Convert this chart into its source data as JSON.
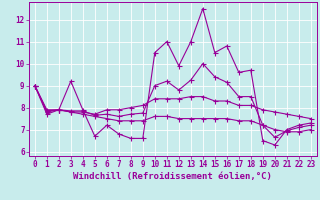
{
  "xlabel": "Windchill (Refroidissement éolien,°C)",
  "background_color": "#c8ecec",
  "line_color": "#990099",
  "grid_color": "#ffffff",
  "xlim": [
    -0.5,
    23.5
  ],
  "ylim": [
    5.8,
    12.8
  ],
  "xticks": [
    0,
    1,
    2,
    3,
    4,
    5,
    6,
    7,
    8,
    9,
    10,
    11,
    12,
    13,
    14,
    15,
    16,
    17,
    18,
    19,
    20,
    21,
    22,
    23
  ],
  "yticks": [
    6,
    7,
    8,
    9,
    10,
    11,
    12
  ],
  "line1_y": [
    9.0,
    7.7,
    7.9,
    9.2,
    7.9,
    6.7,
    7.2,
    6.8,
    6.6,
    6.6,
    10.5,
    11.0,
    9.9,
    11.0,
    12.5,
    10.5,
    10.8,
    9.6,
    9.7,
    6.5,
    6.3,
    7.0,
    7.2,
    7.3
  ],
  "line2_y": [
    9.0,
    7.9,
    7.9,
    7.8,
    7.8,
    7.7,
    7.9,
    7.9,
    8.0,
    8.1,
    8.4,
    8.4,
    8.4,
    8.5,
    8.5,
    8.3,
    8.3,
    8.1,
    8.1,
    7.9,
    7.8,
    7.7,
    7.6,
    7.5
  ],
  "line3_y": [
    9.0,
    7.8,
    7.9,
    7.8,
    7.7,
    7.6,
    7.5,
    7.4,
    7.4,
    7.4,
    7.6,
    7.6,
    7.5,
    7.5,
    7.5,
    7.5,
    7.5,
    7.4,
    7.4,
    7.2,
    7.0,
    6.9,
    6.9,
    7.0
  ],
  "line4_y": [
    9.0,
    7.85,
    7.9,
    7.85,
    7.85,
    7.65,
    7.7,
    7.6,
    7.7,
    7.75,
    9.0,
    9.2,
    8.8,
    9.25,
    10.0,
    9.4,
    9.15,
    8.5,
    8.5,
    7.2,
    6.65,
    6.95,
    7.1,
    7.2
  ],
  "markersize": 2.0,
  "linewidth": 0.8,
  "xlabel_fontsize": 6.5,
  "tick_fontsize": 5.5
}
